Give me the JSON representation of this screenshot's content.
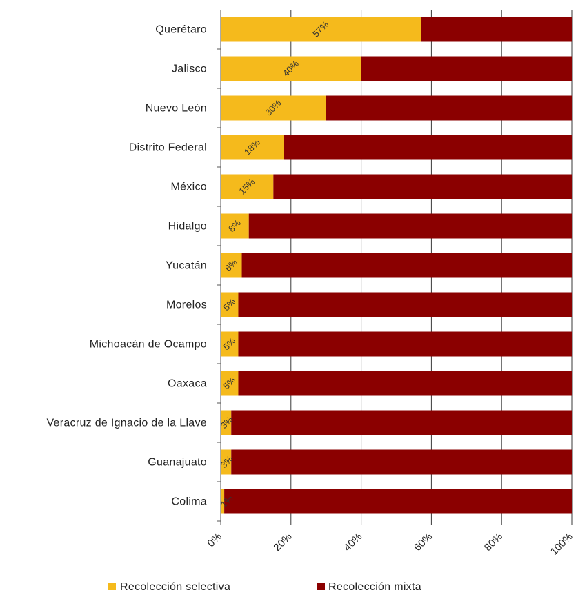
{
  "chart_data": {
    "type": "bar",
    "orientation": "horizontal",
    "stacked": true,
    "percent_stacked": true,
    "categories": [
      "Querétaro",
      "Jalisco",
      "Nuevo León",
      "Distrito Federal",
      "México",
      "Hidalgo",
      "Yucatán",
      "Morelos",
      "Michoacán de Ocampo",
      "Oaxaca",
      "Veracruz de Ignacio de la Llave",
      "Guanajuato",
      "Colima"
    ],
    "series": [
      {
        "name": "Recolección selectiva",
        "color": "#F5BA1C",
        "values": [
          57,
          40,
          30,
          18,
          15,
          8,
          6,
          5,
          5,
          5,
          3,
          3,
          1
        ],
        "labels": [
          "57%",
          "40%",
          "30%",
          "18%",
          "15%",
          "8%",
          "6%",
          "5%",
          "5%",
          "5%",
          "3%",
          "3%",
          "1%"
        ]
      },
      {
        "name": "Recolección mixta",
        "color": "#8B0000",
        "values": [
          43,
          60,
          70,
          82,
          85,
          92,
          94,
          95,
          95,
          95,
          97,
          97,
          99
        ]
      }
    ],
    "xlim": [
      0,
      100
    ],
    "xticks": [
      "0%",
      "20%",
      "40%",
      "60%",
      "80%",
      "100%"
    ],
    "grid": "vertical",
    "legend": "bottom",
    "title": "",
    "xlabel": "",
    "ylabel": ""
  }
}
